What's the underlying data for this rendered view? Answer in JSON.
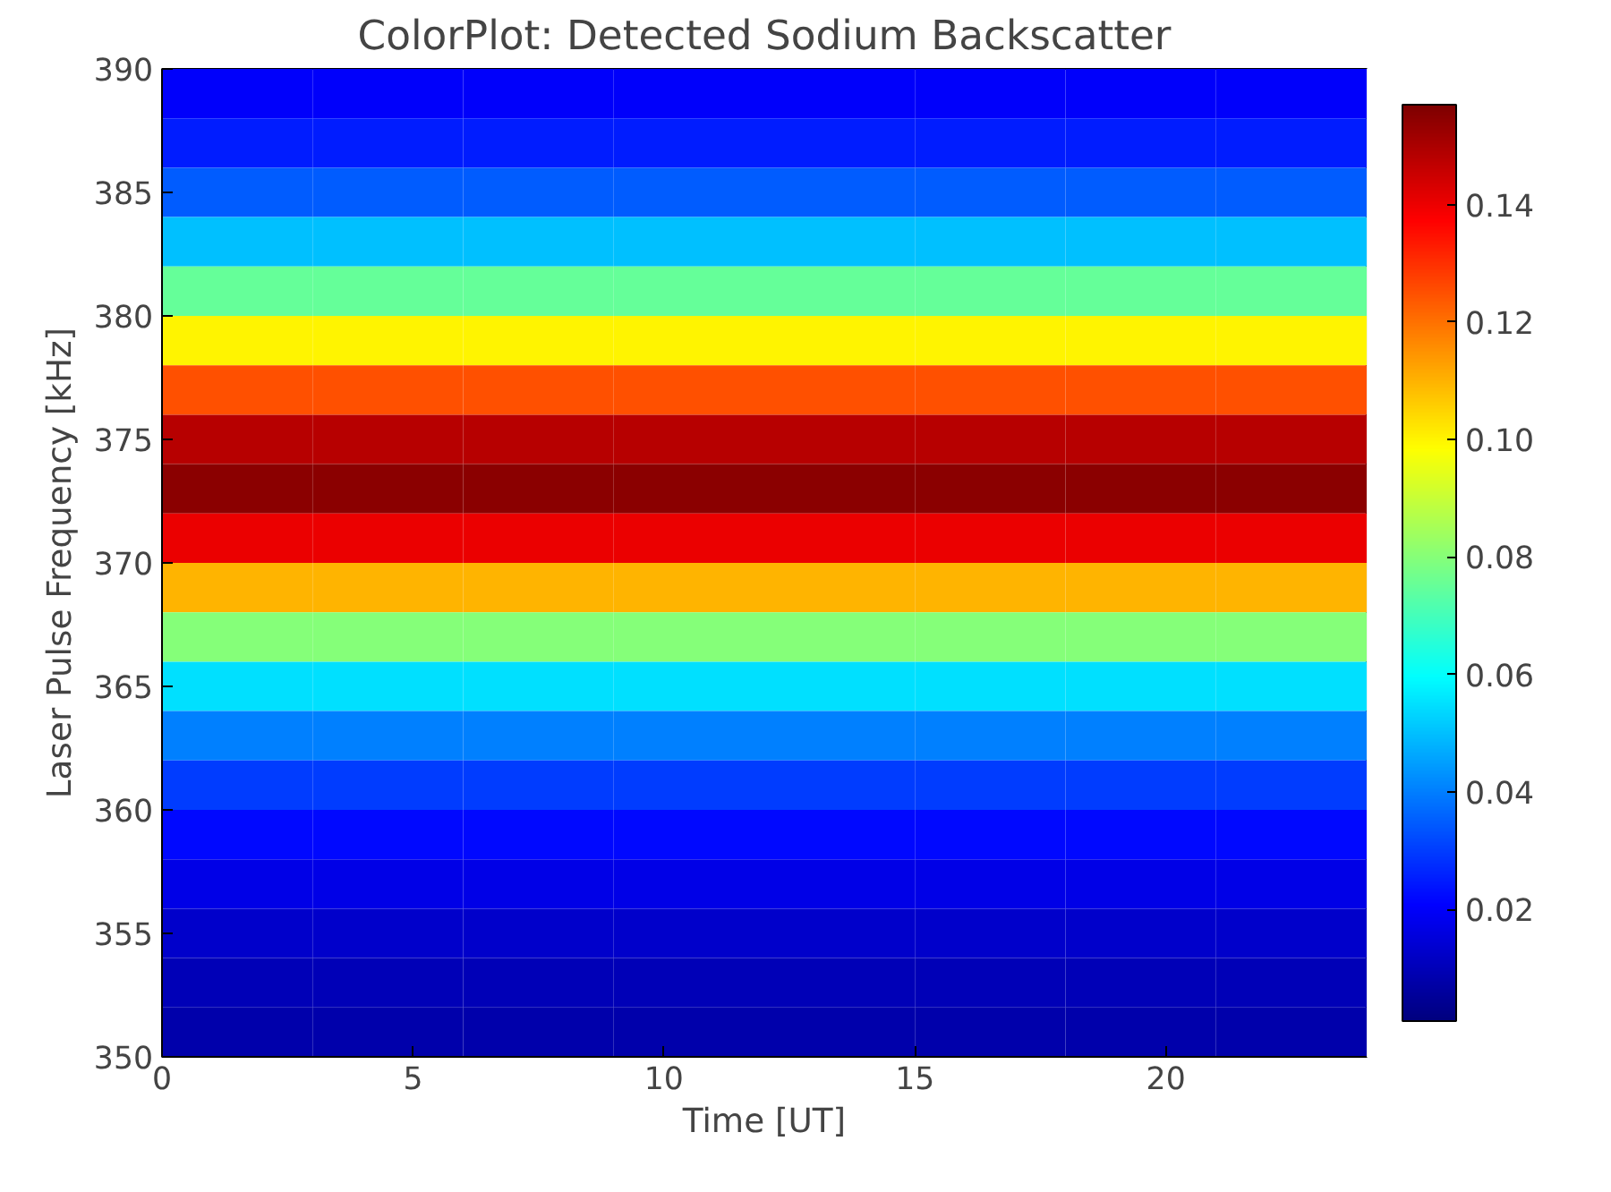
{
  "chart_data": {
    "type": "heatmap",
    "title": "ColorPlot: Detected Sodium Backscatter",
    "xlabel": "Time [UT]",
    "ylabel": "Laser Pulse Frequency [kHz]",
    "x": [
      1.5,
      4.5,
      7.5,
      10.5,
      13.5,
      16.5,
      19.5,
      22.5
    ],
    "y": [
      389,
      387,
      385,
      383,
      381,
      379,
      377,
      375,
      373,
      371,
      369,
      367,
      365,
      363,
      361,
      359,
      357,
      355,
      353,
      351
    ],
    "cells": [
      [
        0.02,
        0.02,
        0.02,
        0.02,
        0.02,
        0.02,
        0.02,
        0.02
      ],
      [
        0.025,
        0.025,
        0.025,
        0.025,
        0.025,
        0.025,
        0.025,
        0.025
      ],
      [
        0.035,
        0.035,
        0.035,
        0.035,
        0.035,
        0.035,
        0.035,
        0.035
      ],
      [
        0.05,
        0.05,
        0.05,
        0.05,
        0.05,
        0.05,
        0.05,
        0.05
      ],
      [
        0.075,
        0.075,
        0.075,
        0.075,
        0.075,
        0.075,
        0.075,
        0.075
      ],
      [
        0.1,
        0.1,
        0.1,
        0.1,
        0.1,
        0.1,
        0.1,
        0.1
      ],
      [
        0.125,
        0.125,
        0.125,
        0.125,
        0.125,
        0.125,
        0.125,
        0.125
      ],
      [
        0.148,
        0.148,
        0.148,
        0.148,
        0.148,
        0.148,
        0.148,
        0.148
      ],
      [
        0.155,
        0.155,
        0.155,
        0.155,
        0.155,
        0.155,
        0.155,
        0.155
      ],
      [
        0.14,
        0.14,
        0.14,
        0.14,
        0.14,
        0.14,
        0.14,
        0.14
      ],
      [
        0.11,
        0.11,
        0.11,
        0.11,
        0.11,
        0.11,
        0.11,
        0.11
      ],
      [
        0.08,
        0.08,
        0.08,
        0.08,
        0.08,
        0.08,
        0.08,
        0.08
      ],
      [
        0.055,
        0.055,
        0.055,
        0.055,
        0.055,
        0.055,
        0.055,
        0.055
      ],
      [
        0.04,
        0.04,
        0.04,
        0.04,
        0.04,
        0.04,
        0.04,
        0.04
      ],
      [
        0.03,
        0.03,
        0.03,
        0.03,
        0.03,
        0.03,
        0.03,
        0.03
      ],
      [
        0.022,
        0.022,
        0.022,
        0.022,
        0.022,
        0.022,
        0.022,
        0.022
      ],
      [
        0.017,
        0.017,
        0.017,
        0.017,
        0.017,
        0.017,
        0.017,
        0.017
      ],
      [
        0.013,
        0.013,
        0.013,
        0.013,
        0.013,
        0.013,
        0.013,
        0.013
      ],
      [
        0.01,
        0.01,
        0.01,
        0.01,
        0.01,
        0.01,
        0.01,
        0.01
      ],
      [
        0.008,
        0.008,
        0.008,
        0.008,
        0.008,
        0.008,
        0.008,
        0.008
      ]
    ],
    "xlim": [
      0,
      24
    ],
    "ylim": [
      350,
      390
    ],
    "xticks": [
      0,
      5,
      10,
      15,
      20
    ],
    "yticks": [
      350,
      355,
      360,
      365,
      370,
      375,
      380,
      385,
      390
    ],
    "clim": [
      0.001,
      0.157
    ],
    "cticks": [
      0.02,
      0.04,
      0.06,
      0.08,
      {
        "value": 0.1,
        "label": "0.10"
      },
      0.12,
      0.14
    ],
    "grid": false
  }
}
